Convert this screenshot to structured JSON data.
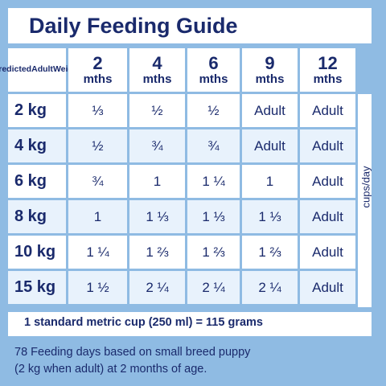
{
  "title": "Daily Feeding Guide",
  "corner_label": [
    "Predicted",
    "Adult",
    "Weight"
  ],
  "columns": [
    {
      "num": "2",
      "unit": "mths"
    },
    {
      "num": "4",
      "unit": "mths"
    },
    {
      "num": "6",
      "unit": "mths"
    },
    {
      "num": "9",
      "unit": "mths"
    },
    {
      "num": "12",
      "unit": "mths"
    }
  ],
  "rows": [
    {
      "weight": "2 kg",
      "values": [
        "⅓",
        "½",
        "½",
        "Adult",
        "Adult"
      ]
    },
    {
      "weight": "4 kg",
      "values": [
        "½",
        "¾",
        "¾",
        "Adult",
        "Adult"
      ]
    },
    {
      "weight": "6 kg",
      "values": [
        "¾",
        "1",
        "1 ¼",
        "1",
        "Adult"
      ]
    },
    {
      "weight": "8 kg",
      "values": [
        "1",
        "1 ⅓",
        "1 ⅓",
        "1 ⅓",
        "Adult"
      ]
    },
    {
      "weight": "10 kg",
      "values": [
        "1 ¼",
        "1 ⅔",
        "1 ⅔",
        "1 ⅔",
        "Adult"
      ]
    },
    {
      "weight": "15 kg",
      "values": [
        "1 ½",
        "2 ¼",
        "2 ¼",
        "2 ¼",
        "Adult"
      ]
    }
  ],
  "side_label": "cups/day",
  "footer": "1 standard metric cup (250 ml) = 115 grams",
  "note_lines": [
    "78 Feeding days based on small breed puppy",
    "(2 kg when adult) at 2 months of age."
  ]
}
